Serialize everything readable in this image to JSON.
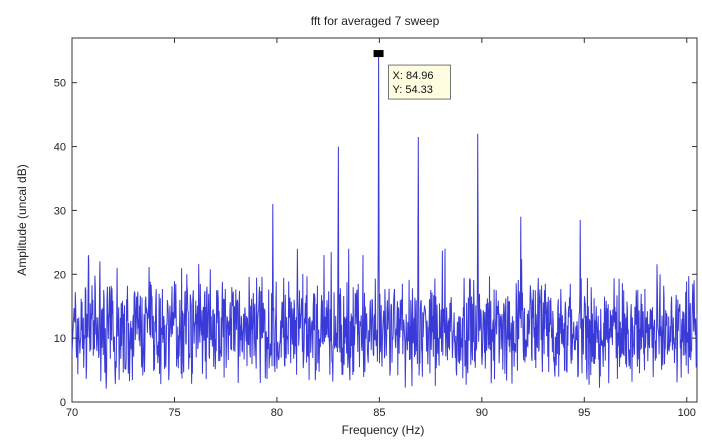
{
  "chart_data": {
    "type": "line",
    "title": "fft for averaged 7 sweep",
    "xlabel": "Frequency (Hz)",
    "ylabel": "Amplitude (uncal dB)",
    "xlim": [
      70,
      100.5
    ],
    "ylim": [
      0,
      57
    ],
    "xticks": [
      70,
      75,
      80,
      85,
      90,
      95,
      100
    ],
    "yticks": [
      0,
      10,
      20,
      30,
      40,
      50
    ],
    "xtick_labels": [
      "70",
      "75",
      "80",
      "85",
      "90",
      "95",
      "100"
    ],
    "ytick_labels": [
      "0",
      "10",
      "20",
      "30",
      "40",
      "50"
    ],
    "grid": false,
    "series": [
      {
        "color": "#3a3ad8",
        "baseline_mean": 11,
        "peaks": [
          {
            "x": 70.8,
            "y": 23
          },
          {
            "x": 72.2,
            "y": 21
          },
          {
            "x": 75.6,
            "y": 20
          },
          {
            "x": 77.8,
            "y": 18
          },
          {
            "x": 79.8,
            "y": 31
          },
          {
            "x": 81.0,
            "y": 24
          },
          {
            "x": 82.3,
            "y": 23
          },
          {
            "x": 83.0,
            "y": 40
          },
          {
            "x": 84.2,
            "y": 23
          },
          {
            "x": 84.96,
            "y": 54.33
          },
          {
            "x": 86.9,
            "y": 41.5
          },
          {
            "x": 88.2,
            "y": 24
          },
          {
            "x": 89.8,
            "y": 42
          },
          {
            "x": 91.9,
            "y": 29
          },
          {
            "x": 94.8,
            "y": 28.5
          },
          {
            "x": 98.7,
            "y": 20
          }
        ]
      }
    ],
    "datatip": {
      "x": 84.96,
      "y": 54.33,
      "x_text": "X: 84.96",
      "y_text": "Y: 54.33"
    }
  }
}
